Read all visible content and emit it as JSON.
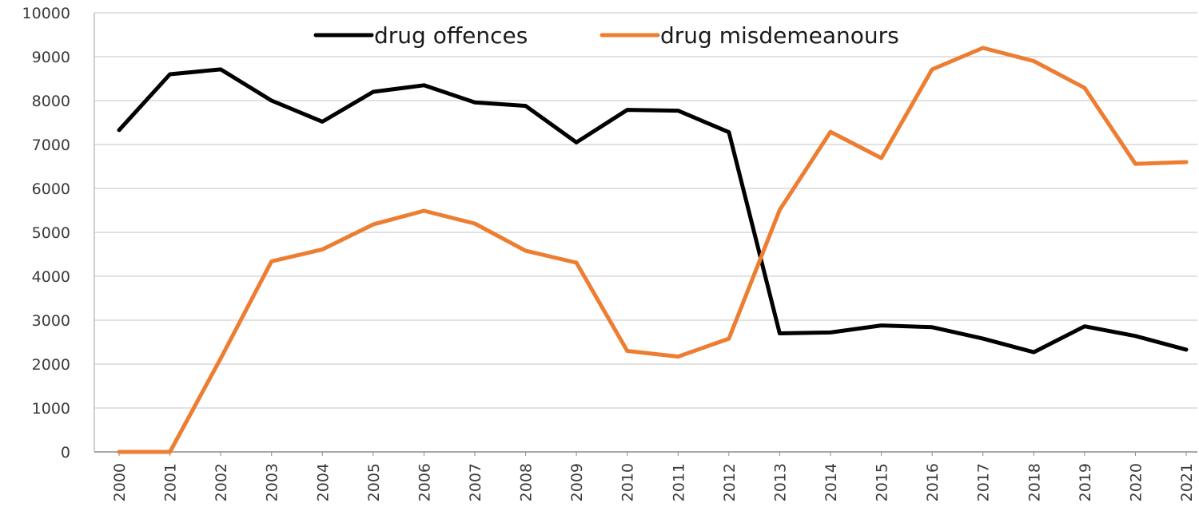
{
  "chart_data": {
    "type": "line",
    "title": "",
    "xlabel": "",
    "ylabel": "",
    "categories": [
      "2000",
      "2001",
      "2002",
      "2003",
      "2004",
      "2005",
      "2006",
      "2007",
      "2008",
      "2009",
      "2010",
      "2011",
      "2012",
      "2013",
      "2014",
      "2015",
      "2016",
      "2017",
      "2018",
      "2019",
      "2020",
      "2021"
    ],
    "ylim": [
      0,
      10000
    ],
    "yticks": [
      "0",
      "1000",
      "2000",
      "3000",
      "4000",
      "5000",
      "6000",
      "7000",
      "8000",
      "9000",
      "10000"
    ],
    "grid": "horizontal",
    "legend_position": "top-center",
    "series": [
      {
        "name": "drug offences",
        "color": "#000000",
        "values": [
          7330,
          8600,
          8710,
          8000,
          7520,
          8200,
          8350,
          7960,
          7880,
          7050,
          7790,
          7770,
          7280,
          2700,
          2720,
          2880,
          2840,
          2580,
          2270,
          2860,
          2640,
          2330
        ]
      },
      {
        "name": "drug misdemeanours",
        "color": "#ed7d31",
        "values": [
          0,
          0,
          2130,
          4340,
          4610,
          5180,
          5490,
          5200,
          4580,
          4310,
          2300,
          2170,
          2580,
          5510,
          7290,
          6690,
          8710,
          9200,
          8900,
          8290,
          6560,
          6600
        ]
      }
    ]
  }
}
